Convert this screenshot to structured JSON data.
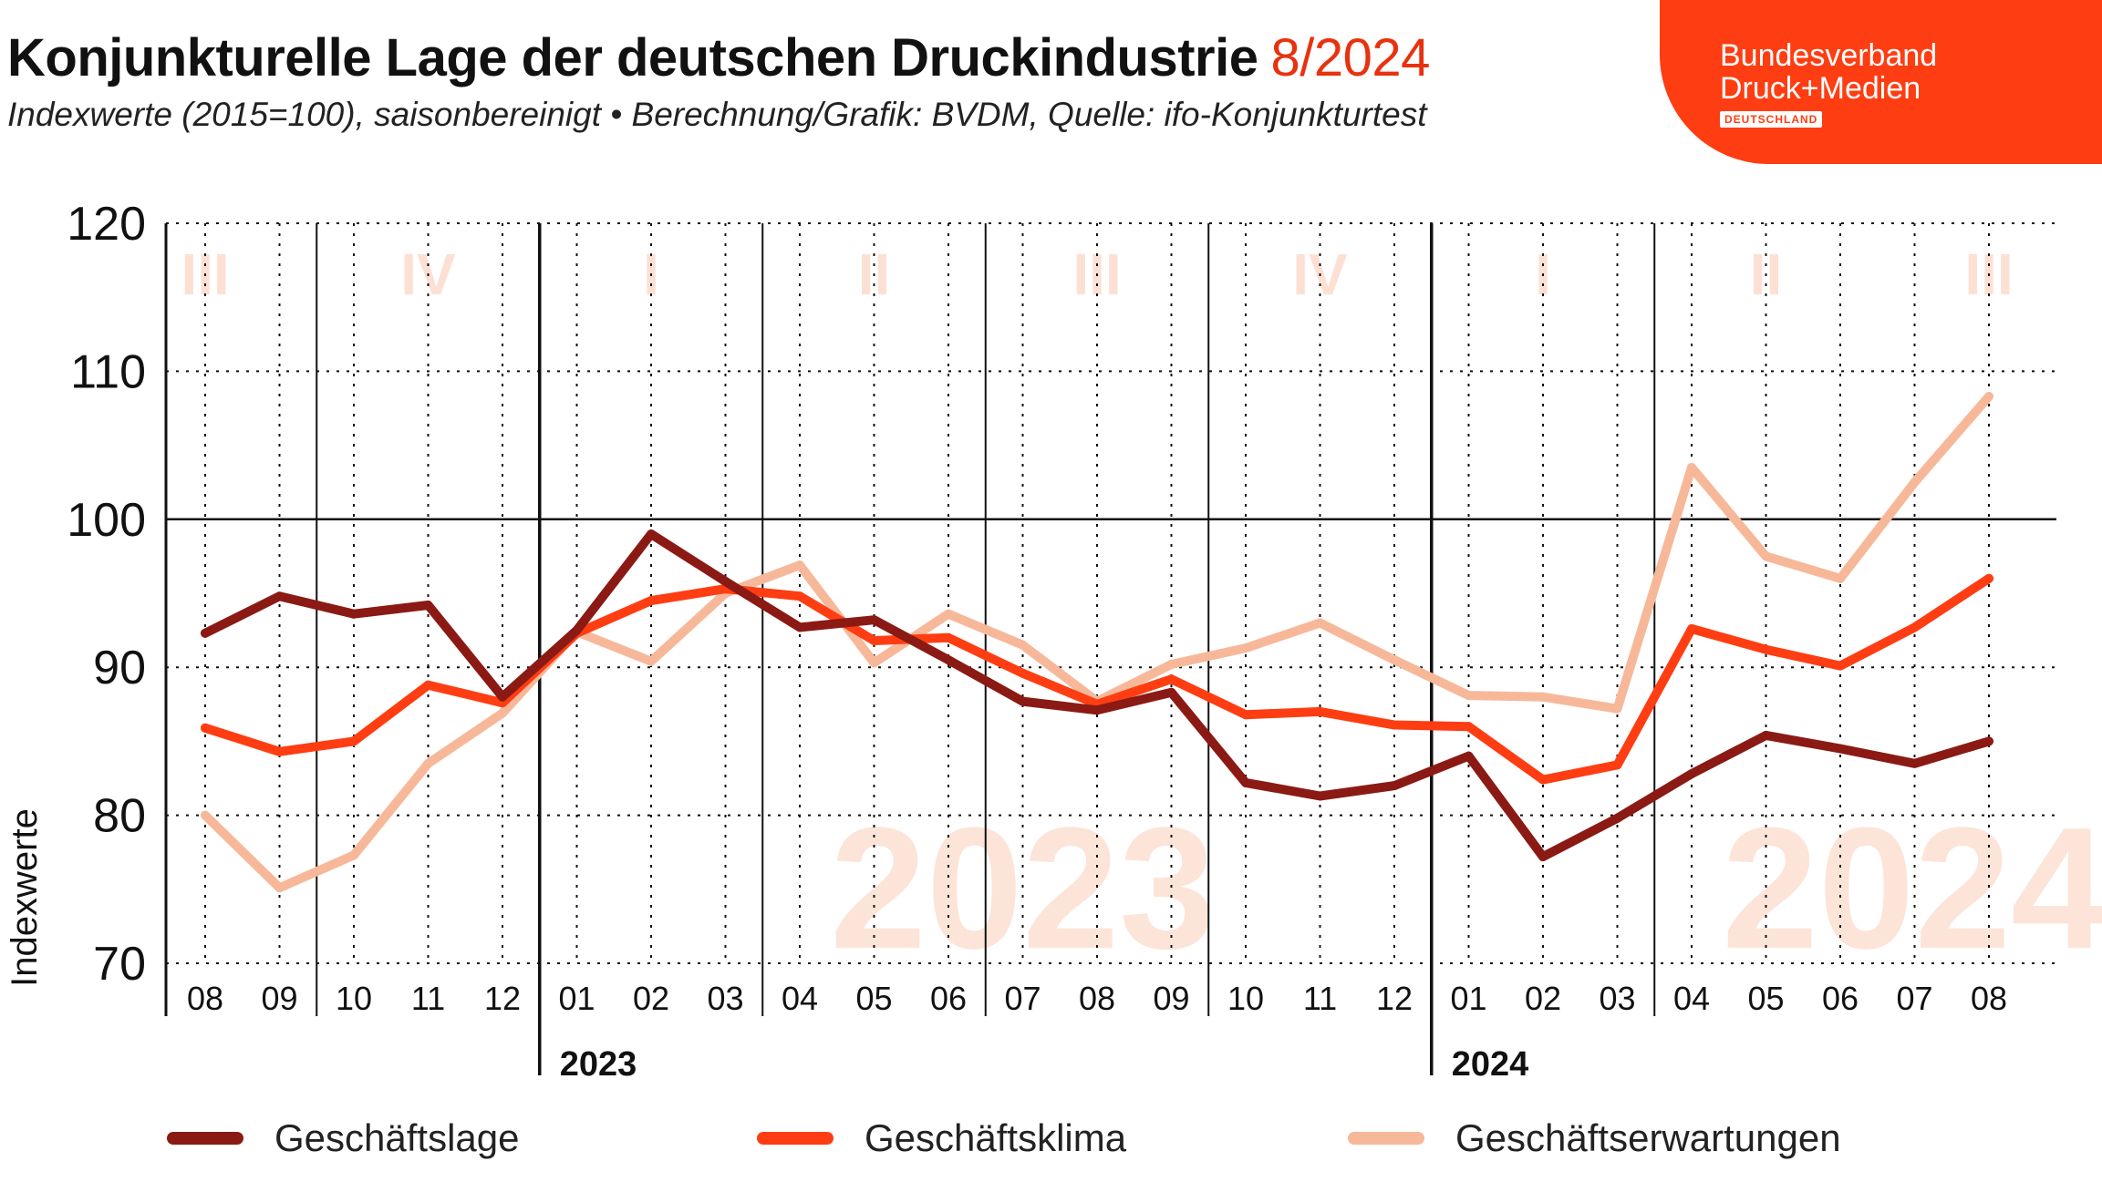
{
  "header": {
    "title": "Konjunkturelle Lage der deutschen Druckindustrie",
    "title_highlight": "8/2024",
    "subtitle": "Indexwerte (2015=100), saisonbereinigt • Berechnung/Grafik: BVDM, Quelle: ifo-Konjunkturtest"
  },
  "logo": {
    "line1": "Bundesverband",
    "line2": "Druck+Medien",
    "line3": "DEUTSCHLAND",
    "color": "#ff3d12"
  },
  "chart_data": {
    "type": "line",
    "ylabel": "Indexwerte",
    "ylim": [
      70,
      120
    ],
    "yticks": [
      70,
      80,
      90,
      100,
      110,
      120
    ],
    "reference_line": 100,
    "categories": [
      "08",
      "09",
      "10",
      "11",
      "12",
      "01",
      "02",
      "03",
      "04",
      "05",
      "06",
      "07",
      "08",
      "09",
      "10",
      "11",
      "12",
      "01",
      "02",
      "03",
      "04",
      "05",
      "06",
      "07",
      "08"
    ],
    "year_labels": [
      {
        "label": "2023",
        "start_index": 5
      },
      {
        "label": "2024",
        "start_index": 17
      }
    ],
    "quarter_labels": [
      {
        "label": "III",
        "start": 0,
        "end": 0
      },
      {
        "label": "IV",
        "start": 2,
        "end": 4
      },
      {
        "label": "I",
        "start": 5,
        "end": 7
      },
      {
        "label": "II",
        "start": 8,
        "end": 10
      },
      {
        "label": "III",
        "start": 11,
        "end": 13
      },
      {
        "label": "IV",
        "start": 14,
        "end": 16
      },
      {
        "label": "I",
        "start": 17,
        "end": 19
      },
      {
        "label": "II",
        "start": 20,
        "end": 22
      },
      {
        "label": "III",
        "start": 24,
        "end": 24
      }
    ],
    "watermarks": [
      {
        "label": "2023",
        "index": 11
      },
      {
        "label": "2024",
        "index": 23
      }
    ],
    "grid": true,
    "legend_position": "bottom",
    "series": [
      {
        "name": "Geschäftslage",
        "color": "#8b1a14",
        "values": [
          92.3,
          94.8,
          93.6,
          94.2,
          88.0,
          92.5,
          99.0,
          95.8,
          92.7,
          93.2,
          90.5,
          87.7,
          87.1,
          88.3,
          82.2,
          81.3,
          82.0,
          84.0,
          77.2,
          79.8,
          82.8,
          85.4,
          84.5,
          83.5,
          85.0
        ]
      },
      {
        "name": "Geschäftsklima",
        "color": "#ff3d12",
        "values": [
          85.9,
          84.3,
          85.0,
          88.8,
          87.6,
          92.3,
          94.5,
          95.3,
          94.8,
          91.8,
          92.0,
          89.6,
          87.5,
          89.2,
          86.8,
          87.0,
          86.1,
          86.0,
          82.4,
          83.4,
          92.6,
          91.2,
          90.1,
          92.7,
          96.0
        ]
      },
      {
        "name": "Geschäftserwartungen",
        "color": "#f7b89a",
        "values": [
          80.0,
          75.1,
          77.3,
          83.5,
          86.9,
          92.4,
          90.4,
          95.0,
          96.9,
          90.3,
          93.6,
          91.5,
          87.7,
          90.2,
          91.3,
          93.0,
          90.5,
          88.1,
          88.0,
          87.2,
          103.5,
          97.5,
          96.0,
          102.5,
          108.3
        ]
      }
    ]
  }
}
